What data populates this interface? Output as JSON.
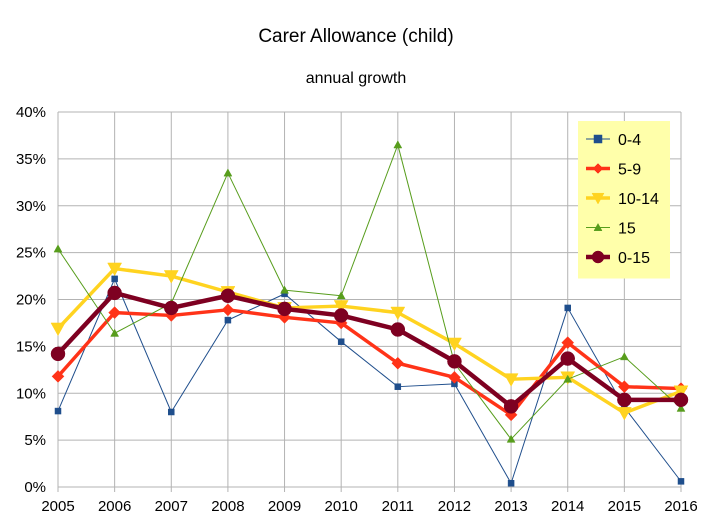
{
  "chart_data": {
    "type": "line",
    "title": "Carer Allowance (child)",
    "subtitle": "annual growth",
    "xlabel": "",
    "ylabel": "",
    "x": [
      "2005",
      "2006",
      "2007",
      "2008",
      "2009",
      "2010",
      "2011",
      "2012",
      "2013",
      "2014",
      "2015",
      "2016"
    ],
    "ylim": [
      0,
      40
    ],
    "yticks": [
      "0%",
      "5%",
      "10%",
      "15%",
      "20%",
      "25%",
      "30%",
      "35%",
      "40%"
    ],
    "grid": true,
    "legend_position": "top-right",
    "legend_background": "#ffffaa",
    "series": [
      {
        "name": "0-4",
        "color": "#1f4e8c",
        "marker": "square",
        "width": 1,
        "values": [
          8.1,
          22.2,
          8.0,
          17.8,
          20.6,
          15.5,
          10.7,
          11.0,
          0.4,
          19.1,
          8.5,
          0.6
        ]
      },
      {
        "name": "5-9",
        "color": "#ff3318",
        "marker": "diamond",
        "width": 3.5,
        "values": [
          11.8,
          18.6,
          18.3,
          18.9,
          18.1,
          17.5,
          13.2,
          11.7,
          7.7,
          15.4,
          10.7,
          10.5
        ]
      },
      {
        "name": "10-14",
        "color": "#ffd320",
        "marker": "triangle-down",
        "width": 3.5,
        "values": [
          16.9,
          23.3,
          22.5,
          20.8,
          19.1,
          19.3,
          18.6,
          15.3,
          11.5,
          11.7,
          7.9,
          10.2
        ]
      },
      {
        "name": "15",
        "color": "#579d1c",
        "marker": "triangle-up",
        "width": 1,
        "values": [
          25.4,
          16.4,
          19.6,
          33.5,
          21.0,
          20.4,
          36.5,
          13.2,
          5.1,
          11.5,
          13.9,
          8.4
        ]
      },
      {
        "name": "0-15",
        "color": "#7e0021",
        "marker": "circle",
        "width": 4.5,
        "values": [
          14.2,
          20.7,
          19.1,
          20.4,
          19.0,
          18.3,
          16.8,
          13.4,
          8.6,
          13.7,
          9.3,
          9.3
        ]
      }
    ]
  }
}
